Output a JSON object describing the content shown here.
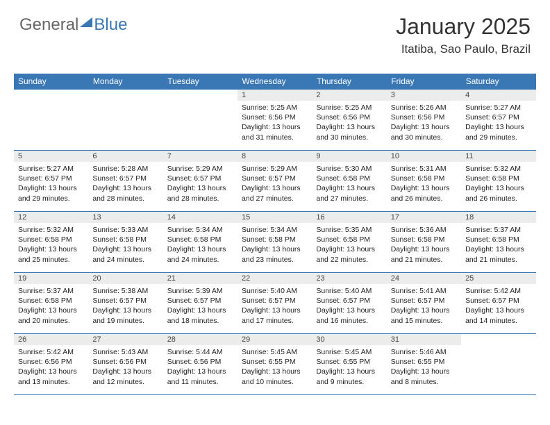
{
  "logo": {
    "text1": "General",
    "text2": "Blue"
  },
  "header": {
    "month_year": "January 2025",
    "location": "Itatiba, Sao Paulo, Brazil"
  },
  "colors": {
    "accent": "#3a77b5",
    "header_bg": "#3a77b5",
    "header_fg": "#ffffff",
    "daynum_bg": "#ececec",
    "text": "#222222",
    "logo_gray": "#666666"
  },
  "weekdays": [
    "Sunday",
    "Monday",
    "Tuesday",
    "Wednesday",
    "Thursday",
    "Friday",
    "Saturday"
  ],
  "weeks": [
    [
      {
        "empty": true
      },
      {
        "empty": true
      },
      {
        "empty": true
      },
      {
        "day": "1",
        "sunrise": "5:25 AM",
        "sunset": "6:56 PM",
        "daylight": "13 hours and 31 minutes."
      },
      {
        "day": "2",
        "sunrise": "5:25 AM",
        "sunset": "6:56 PM",
        "daylight": "13 hours and 30 minutes."
      },
      {
        "day": "3",
        "sunrise": "5:26 AM",
        "sunset": "6:56 PM",
        "daylight": "13 hours and 30 minutes."
      },
      {
        "day": "4",
        "sunrise": "5:27 AM",
        "sunset": "6:57 PM",
        "daylight": "13 hours and 29 minutes."
      }
    ],
    [
      {
        "day": "5",
        "sunrise": "5:27 AM",
        "sunset": "6:57 PM",
        "daylight": "13 hours and 29 minutes."
      },
      {
        "day": "6",
        "sunrise": "5:28 AM",
        "sunset": "6:57 PM",
        "daylight": "13 hours and 28 minutes."
      },
      {
        "day": "7",
        "sunrise": "5:29 AM",
        "sunset": "6:57 PM",
        "daylight": "13 hours and 28 minutes."
      },
      {
        "day": "8",
        "sunrise": "5:29 AM",
        "sunset": "6:57 PM",
        "daylight": "13 hours and 27 minutes."
      },
      {
        "day": "9",
        "sunrise": "5:30 AM",
        "sunset": "6:58 PM",
        "daylight": "13 hours and 27 minutes."
      },
      {
        "day": "10",
        "sunrise": "5:31 AM",
        "sunset": "6:58 PM",
        "daylight": "13 hours and 26 minutes."
      },
      {
        "day": "11",
        "sunrise": "5:32 AM",
        "sunset": "6:58 PM",
        "daylight": "13 hours and 26 minutes."
      }
    ],
    [
      {
        "day": "12",
        "sunrise": "5:32 AM",
        "sunset": "6:58 PM",
        "daylight": "13 hours and 25 minutes."
      },
      {
        "day": "13",
        "sunrise": "5:33 AM",
        "sunset": "6:58 PM",
        "daylight": "13 hours and 24 minutes."
      },
      {
        "day": "14",
        "sunrise": "5:34 AM",
        "sunset": "6:58 PM",
        "daylight": "13 hours and 24 minutes."
      },
      {
        "day": "15",
        "sunrise": "5:34 AM",
        "sunset": "6:58 PM",
        "daylight": "13 hours and 23 minutes."
      },
      {
        "day": "16",
        "sunrise": "5:35 AM",
        "sunset": "6:58 PM",
        "daylight": "13 hours and 22 minutes."
      },
      {
        "day": "17",
        "sunrise": "5:36 AM",
        "sunset": "6:58 PM",
        "daylight": "13 hours and 21 minutes."
      },
      {
        "day": "18",
        "sunrise": "5:37 AM",
        "sunset": "6:58 PM",
        "daylight": "13 hours and 21 minutes."
      }
    ],
    [
      {
        "day": "19",
        "sunrise": "5:37 AM",
        "sunset": "6:58 PM",
        "daylight": "13 hours and 20 minutes."
      },
      {
        "day": "20",
        "sunrise": "5:38 AM",
        "sunset": "6:57 PM",
        "daylight": "13 hours and 19 minutes."
      },
      {
        "day": "21",
        "sunrise": "5:39 AM",
        "sunset": "6:57 PM",
        "daylight": "13 hours and 18 minutes."
      },
      {
        "day": "22",
        "sunrise": "5:40 AM",
        "sunset": "6:57 PM",
        "daylight": "13 hours and 17 minutes."
      },
      {
        "day": "23",
        "sunrise": "5:40 AM",
        "sunset": "6:57 PM",
        "daylight": "13 hours and 16 minutes."
      },
      {
        "day": "24",
        "sunrise": "5:41 AM",
        "sunset": "6:57 PM",
        "daylight": "13 hours and 15 minutes."
      },
      {
        "day": "25",
        "sunrise": "5:42 AM",
        "sunset": "6:57 PM",
        "daylight": "13 hours and 14 minutes."
      }
    ],
    [
      {
        "day": "26",
        "sunrise": "5:42 AM",
        "sunset": "6:56 PM",
        "daylight": "13 hours and 13 minutes."
      },
      {
        "day": "27",
        "sunrise": "5:43 AM",
        "sunset": "6:56 PM",
        "daylight": "13 hours and 12 minutes."
      },
      {
        "day": "28",
        "sunrise": "5:44 AM",
        "sunset": "6:56 PM",
        "daylight": "13 hours and 11 minutes."
      },
      {
        "day": "29",
        "sunrise": "5:45 AM",
        "sunset": "6:55 PM",
        "daylight": "13 hours and 10 minutes."
      },
      {
        "day": "30",
        "sunrise": "5:45 AM",
        "sunset": "6:55 PM",
        "daylight": "13 hours and 9 minutes."
      },
      {
        "day": "31",
        "sunrise": "5:46 AM",
        "sunset": "6:55 PM",
        "daylight": "13 hours and 8 minutes."
      },
      {
        "empty": true
      }
    ]
  ],
  "labels": {
    "sunrise": "Sunrise:",
    "sunset": "Sunset:",
    "daylight": "Daylight:"
  }
}
